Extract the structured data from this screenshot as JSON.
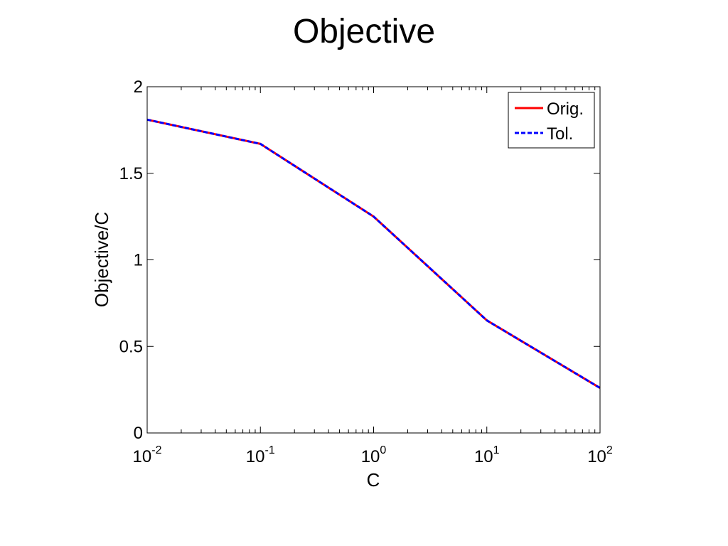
{
  "chart_data": {
    "type": "line",
    "title": "Objective",
    "xlabel": "C",
    "ylabel": "Objective/C",
    "x_scale": "log",
    "xlim": [
      0.01,
      100
    ],
    "ylim": [
      0,
      2
    ],
    "x_ticks": [
      {
        "base": "10",
        "exp": "-2",
        "value": 0.01
      },
      {
        "base": "10",
        "exp": "-1",
        "value": 0.1
      },
      {
        "base": "10",
        "exp": "0",
        "value": 1
      },
      {
        "base": "10",
        "exp": "1",
        "value": 10
      },
      {
        "base": "10",
        "exp": "2",
        "value": 100
      }
    ],
    "y_ticks": [
      {
        "label": "0",
        "value": 0
      },
      {
        "label": "0.5",
        "value": 0.5
      },
      {
        "label": "1",
        "value": 1
      },
      {
        "label": "1.5",
        "value": 1.5
      },
      {
        "label": "2",
        "value": 2
      }
    ],
    "x": [
      0.01,
      0.1,
      1,
      10,
      100
    ],
    "series": [
      {
        "name": "Orig.",
        "values": [
          1.81,
          1.67,
          1.25,
          0.65,
          0.26
        ],
        "color": "#ff0000",
        "style": "solid"
      },
      {
        "name": "Tol.",
        "values": [
          1.81,
          1.67,
          1.25,
          0.65,
          0.26
        ],
        "color": "#0000ff",
        "style": "dashed"
      }
    ],
    "grid": false,
    "legend_position": "top-right"
  }
}
